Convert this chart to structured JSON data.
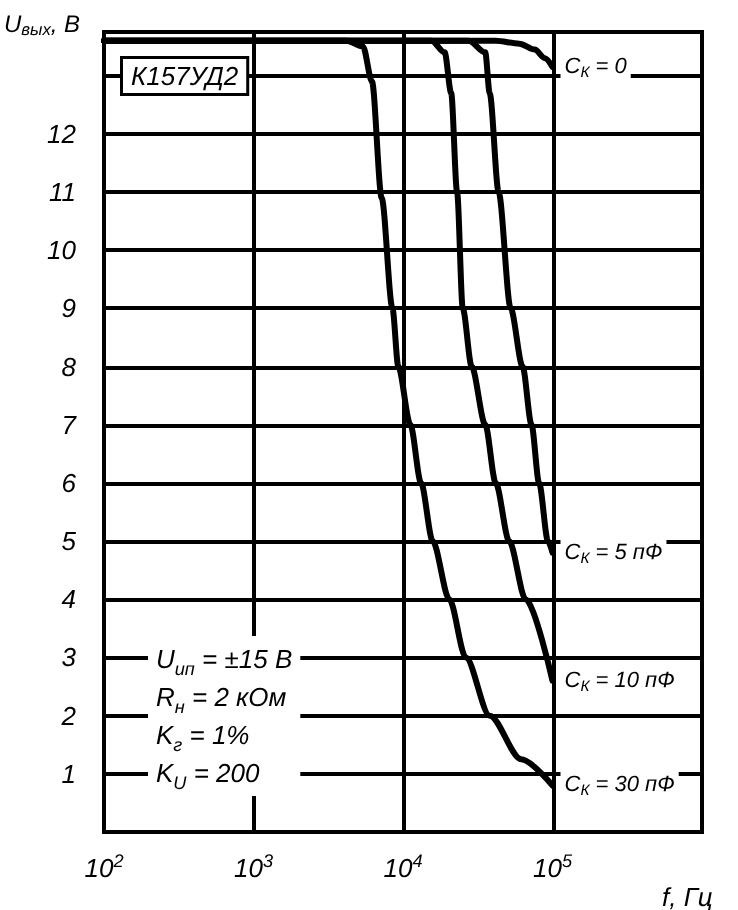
{
  "chart_data": {
    "type": "line",
    "ylabel": "U$_{вых}$, В",
    "xlabel": "f, Гц",
    "log": "x",
    "grid": true,
    "legend": false,
    "marker": "none",
    "line_style": "solid",
    "xlim": [
      100,
      1000000
    ],
    "xticks": [
      {
        "value": 100,
        "label": "10$^{2}$"
      },
      {
        "value": 1000,
        "label": "10$^{3}$"
      },
      {
        "value": 10000,
        "label": "10$^{4}$"
      },
      {
        "value": 100000,
        "label": "10$^{5}$"
      },
      {
        "value": 1000000,
        "label": null
      }
    ],
    "ylim": [
      0,
      13.75
    ],
    "yticks": [
      1,
      2,
      3,
      4,
      5,
      6,
      7,
      8,
      9,
      10,
      11,
      12,
      {
        "value": 13,
        "label": null
      }
    ],
    "annotations": [
      "К157УД2",
      "U$_{ип}$ = ±15 В",
      "R$_{н}$ = 2 кОм",
      "K$_{г}$ = 1%",
      "K$_{U}$ = 200"
    ],
    "series": [
      {
        "name": "C$_{К}$ = 0",
        "color": "#000000",
        "x": [
          100,
          41700,
          60000,
          76000,
          89000,
          100000
        ],
        "values": [
          13.6,
          13.6,
          13.55,
          13.45,
          13.3,
          13.15
        ]
      },
      {
        "name": "C$_{К}$ = 5 пФ",
        "color": "#000000",
        "x": [
          100,
          27500,
          35500,
          38000,
          43600,
          52500,
          63100,
          72400,
          81300,
          93300,
          100000
        ],
        "values": [
          13.6,
          13.6,
          13.4,
          12.7,
          11,
          9,
          8,
          7,
          6,
          5,
          4.8
        ]
      },
      {
        "name": "C$_{К}$ = 10 пФ",
        "color": "#000000",
        "x": [
          100,
          15500,
          19000,
          21000,
          23000,
          25100,
          28800,
          35500,
          41700,
          51300,
          66100,
          100000
        ],
        "values": [
          13.6,
          13.6,
          13.4,
          12.7,
          11,
          9,
          8,
          7,
          6,
          5,
          4,
          2.6
        ]
      },
      {
        "name": "C$_{К}$ = 30 пФ",
        "color": "#000000",
        "x": [
          100,
          4200,
          5400,
          6200,
          7200,
          8500,
          9300,
          11200,
          13200,
          15800,
          20400,
          26300,
          38000,
          61700,
          100000
        ],
        "values": [
          13.6,
          13.6,
          13.5,
          12.9,
          10.9,
          9,
          8,
          7,
          6,
          5,
          4,
          3,
          2,
          1.25,
          0.8
        ]
      }
    ]
  }
}
